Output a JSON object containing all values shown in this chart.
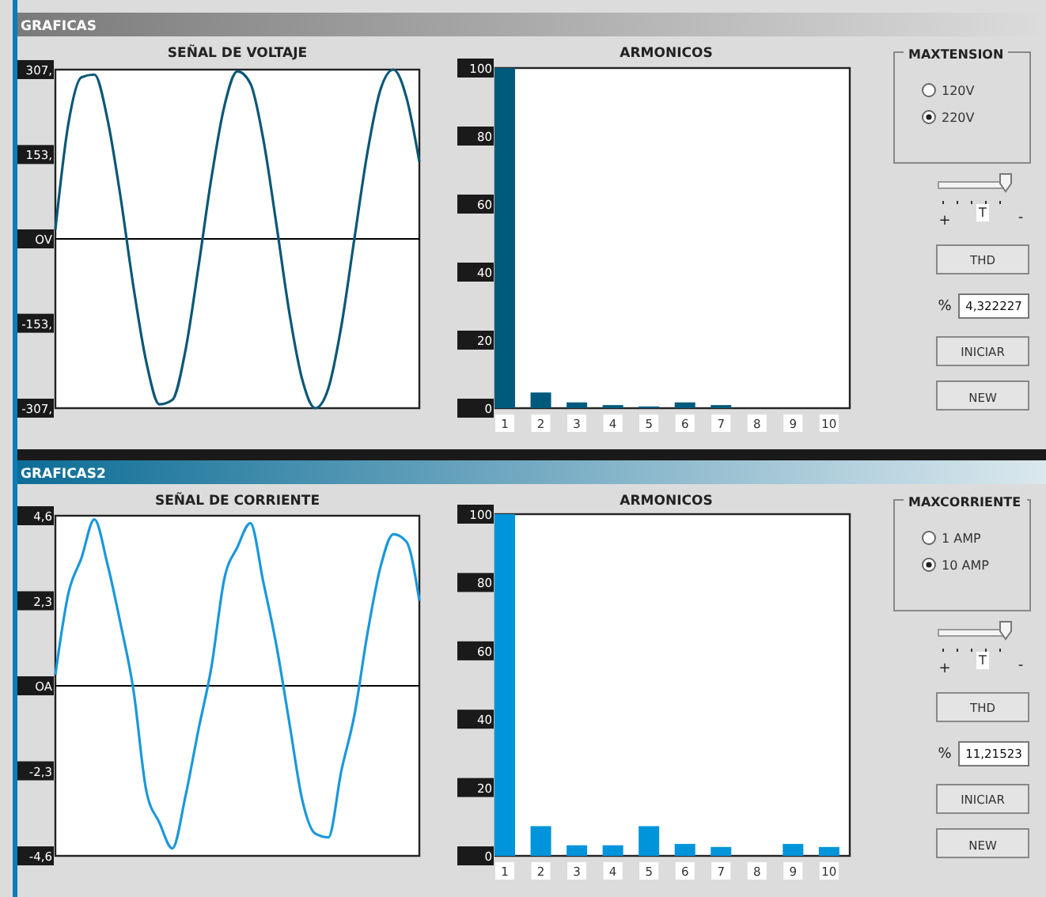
{
  "chart_data": [
    {
      "type": "line",
      "title": "SEÑAL DE VOLTAJE",
      "categories": [
        null,
        null,
        null,
        null,
        null,
        null,
        null,
        null,
        null,
        null,
        null,
        null,
        null,
        null,
        null,
        null,
        null,
        null,
        null,
        null,
        null,
        null,
        null,
        null,
        null,
        null,
        null,
        null,
        null
      ],
      "series": [
        {
          "color": "#0b5778",
          "values": [
            17,
            209,
            293,
            298,
            218,
            78,
            -86,
            -224,
            -300,
            -292,
            -203,
            -52,
            110,
            241,
            304,
            282,
            180,
            27,
            -134,
            -256,
            -307,
            -271,
            -158,
            0,
            156,
            270,
            307,
            257,
            140
          ]
        }
      ],
      "ylim": [
        -307,
        307
      ],
      "yticks": [
        {
          "value": 307,
          "label": "307,"
        },
        {
          "value": 153,
          "label": "153,"
        },
        {
          "value": 0,
          "label": "OV"
        },
        {
          "value": -153,
          "label": "-153,"
        },
        {
          "value": -307,
          "label": "-307,"
        }
      ],
      "tick_labels": "y",
      "ref_lines": [
        {
          "axis": "y",
          "value": 0,
          "color": "#000000"
        }
      ]
    },
    {
      "type": "bar",
      "title": "ARMONICOS",
      "categories": [
        "1",
        "2",
        "3",
        "4",
        "5",
        "6",
        "7",
        "8",
        "9",
        "10"
      ],
      "values": [
        100,
        4.6,
        1.7,
        0.9,
        0.5,
        1.7,
        0.9,
        0,
        0,
        0
      ],
      "color": "#005a7c",
      "ylim": [
        0,
        100
      ],
      "yticks": [
        0,
        20,
        40,
        60,
        80,
        100
      ]
    },
    {
      "type": "other",
      "title": "MAXTENSION",
      "annotations": [
        "GRAFICAS",
        "120V",
        "220V",
        "+",
        "T",
        "-",
        "THD",
        "%",
        "4,322227",
        "INICIAR",
        "NEW"
      ]
    },
    {
      "type": "line",
      "title": "SEÑAL DE CORRIENTE",
      "categories": [
        null,
        null,
        null,
        null,
        null,
        null,
        null,
        null,
        null,
        null,
        null,
        null,
        null,
        null,
        null,
        null,
        null,
        null,
        null,
        null,
        null,
        null,
        null,
        null,
        null,
        null,
        null,
        null,
        null
      ],
      "series": [
        {
          "color": "#1a98dc",
          "values": [
            0.3,
            2.5,
            3.45,
            4.5,
            3.3,
            1.7,
            -0.1,
            -2.85,
            -3.7,
            -4.4,
            -3.0,
            -1.2,
            0.5,
            2.9,
            3.75,
            4.4,
            2.8,
            1.1,
            -1.0,
            -3.1,
            -4.0,
            -4.1,
            -2.3,
            -0.8,
            1.4,
            3.2,
            4.1,
            3.9,
            2.3
          ]
        }
      ],
      "ylim": [
        -4.6,
        4.6
      ],
      "yticks": [
        {
          "value": 4.6,
          "label": "4,6"
        },
        {
          "value": 2.3,
          "label": "2,3"
        },
        {
          "value": 0,
          "label": "OA"
        },
        {
          "value": -2.3,
          "label": "-2,3"
        },
        {
          "value": -4.6,
          "label": "-4,6"
        }
      ],
      "tick_labels": "y",
      "ref_lines": [
        {
          "axis": "y",
          "value": 0,
          "color": "#000000"
        }
      ]
    },
    {
      "type": "bar",
      "title": "ARMONICOS",
      "categories": [
        "1",
        "2",
        "3",
        "4",
        "5",
        "6",
        "7",
        "8",
        "9",
        "10"
      ],
      "values": [
        100,
        8.7,
        3.1,
        3.1,
        8.7,
        3.5,
        2.6,
        0,
        3.5,
        2.6
      ],
      "color": "#0095db",
      "ylim": [
        0,
        100
      ],
      "yticks": [
        0,
        20,
        40,
        60,
        80,
        100
      ]
    },
    {
      "type": "other",
      "title": "MAXCORRIENTE",
      "annotations": [
        "GRAFICAS2",
        "1 AMP",
        "10 AMP",
        "+",
        "T",
        "-",
        "THD",
        "%",
        "11,21523",
        "INICIAR",
        "NEW"
      ]
    }
  ]
}
